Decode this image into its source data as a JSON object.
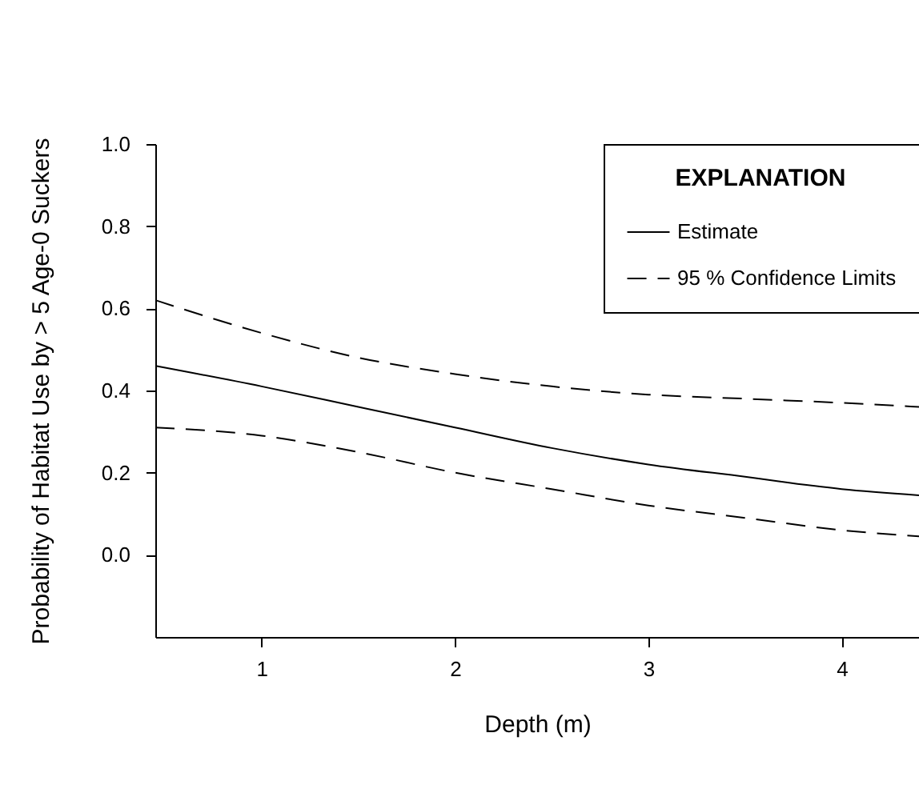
{
  "chart_data": {
    "type": "line",
    "xlabel": "Depth (m)",
    "ylabel": "Probability of Habitat Use by > 5 Age-0 Suckers",
    "legend_title": "EXPLANATION",
    "x": [
      0.45,
      1,
      1.5,
      2,
      2.5,
      3,
      3.5,
      4,
      4.4
    ],
    "series": [
      {
        "name": "Estimate",
        "color": "#000000",
        "line_style": "solid",
        "values": [
          0.46,
          0.41,
          0.36,
          0.31,
          0.26,
          0.22,
          0.19,
          0.16,
          0.145
        ]
      },
      {
        "name": "95 % Confidence Limits",
        "color": "#000000",
        "line_style": "dashed",
        "values": [
          0.62,
          0.54,
          0.48,
          0.44,
          0.41,
          0.39,
          0.38,
          0.37,
          0.36
        ]
      },
      {
        "color": "#000000",
        "line_style": "dashed",
        "values": [
          0.31,
          0.29,
          0.25,
          0.2,
          0.16,
          0.12,
          0.09,
          0.06,
          0.045
        ]
      }
    ],
    "xlim": [
      0.45,
      4.4
    ],
    "xticks": [
      1,
      2,
      3,
      4
    ],
    "ylim": [
      -0.2,
      1.0
    ],
    "yticks": [
      {
        "value": 0,
        "label": "0.0"
      },
      {
        "value": 0.2,
        "label": "0.2"
      },
      {
        "value": 0.4,
        "label": "0.4"
      },
      {
        "value": 0.6,
        "label": "0.6"
      },
      {
        "value": 0.8,
        "label": "0.8"
      },
      {
        "value": 1,
        "label": "1.0"
      }
    ],
    "grid": false,
    "legend": "top right",
    "marker": "none"
  }
}
